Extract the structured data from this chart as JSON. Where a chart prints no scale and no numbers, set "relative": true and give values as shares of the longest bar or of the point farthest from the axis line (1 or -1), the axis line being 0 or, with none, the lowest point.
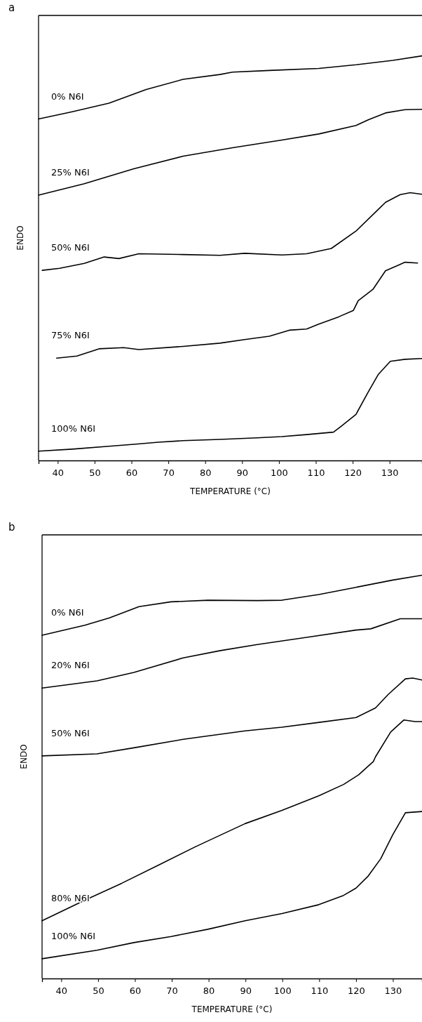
{
  "chart_data": [
    {
      "type": "line",
      "title": "a",
      "xlabel": "TEMPERATURE (°C)",
      "ylabel": "ENDO",
      "relative": true,
      "xlim": [
        34.8,
        138.8
      ],
      "xticks": [
        40,
        50,
        60,
        70,
        80,
        90,
        100,
        110,
        120,
        130
      ],
      "series": [
        {
          "name": "0% N6I",
          "color": "#000000",
          "x": [
            34.8,
            43.9,
            53.9,
            64.0,
            74.0,
            84.0,
            87.4,
            97.4,
            110.8,
            120.9,
            130.9,
            138.8
          ],
          "values": [
            0.844,
            0.862,
            0.883,
            0.917,
            0.942,
            0.954,
            0.96,
            0.964,
            0.969,
            0.978,
            0.989,
            1.0
          ]
        },
        {
          "name": "25% N6I",
          "color": "#000000",
          "x": [
            34.8,
            47.2,
            60.6,
            74.0,
            87.4,
            100.8,
            110.8,
            120.9,
            124.2,
            128.9,
            134.2,
            138.8
          ],
          "values": [
            0.656,
            0.684,
            0.721,
            0.752,
            0.773,
            0.792,
            0.807,
            0.828,
            0.842,
            0.859,
            0.867,
            0.868
          ]
        },
        {
          "name": "50% N6I",
          "color": "#000000",
          "x": [
            35.8,
            40.5,
            47.2,
            52.6,
            56.6,
            62.0,
            74.0,
            84.0,
            90.7,
            100.8,
            107.5,
            114.2,
            120.9,
            126.2,
            128.9,
            132.9,
            135.6,
            138.8
          ],
          "values": [
            0.47,
            0.475,
            0.487,
            0.503,
            0.499,
            0.511,
            0.509,
            0.507,
            0.512,
            0.508,
            0.511,
            0.524,
            0.567,
            0.614,
            0.638,
            0.657,
            0.662,
            0.658
          ]
        },
        {
          "name": "75% N6I",
          "color": "#000000",
          "x": [
            39.7,
            45.2,
            51.2,
            57.9,
            62.0,
            74.0,
            84.0,
            90.7,
            97.4,
            102.8,
            107.5,
            110.8,
            116.2,
            120.2,
            121.5,
            125.5,
            128.9,
            132.2,
            134.2,
            137.6
          ],
          "values": [
            0.253,
            0.258,
            0.276,
            0.279,
            0.274,
            0.282,
            0.29,
            0.299,
            0.307,
            0.322,
            0.325,
            0.337,
            0.355,
            0.371,
            0.395,
            0.423,
            0.469,
            0.482,
            0.49,
            0.488
          ]
        },
        {
          "name": "100% N6I",
          "color": "#000000",
          "x": [
            34.8,
            43.9,
            53.9,
            60.6,
            67.3,
            74.0,
            84.0,
            94.1,
            100.8,
            107.5,
            114.8,
            116.8,
            120.9,
            124.2,
            126.9,
            130.2,
            134.2,
            138.8
          ],
          "values": [
            0.023,
            0.028,
            0.035,
            0.04,
            0.045,
            0.049,
            0.052,
            0.056,
            0.059,
            0.064,
            0.07,
            0.084,
            0.114,
            0.169,
            0.212,
            0.245,
            0.25,
            0.252
          ]
        }
      ]
    },
    {
      "type": "line",
      "title": "b",
      "xlabel": "TEMPERATURE (°C)",
      "ylabel": "ENDO",
      "relative": true,
      "xlim": [
        34.8,
        137.9
      ],
      "xticks": [
        40,
        50,
        60,
        70,
        80,
        90,
        100,
        110,
        120,
        130
      ],
      "series": [
        {
          "name": "0% N6I",
          "color": "#000000",
          "x": [
            34.8,
            46.4,
            53.1,
            61.1,
            69.8,
            79.8,
            93.2,
            99.9,
            109.9,
            120.0,
            130.0,
            137.9
          ],
          "values": [
            0.851,
            0.876,
            0.894,
            0.922,
            0.934,
            0.938,
            0.937,
            0.938,
            0.952,
            0.97,
            0.988,
            1.0
          ]
        },
        {
          "name": "20% N6I",
          "color": "#000000",
          "x": [
            34.8,
            49.7,
            59.7,
            73.1,
            83.2,
            93.2,
            106.6,
            120.0,
            124.0,
            132.0,
            137.9
          ],
          "values": [
            0.72,
            0.738,
            0.759,
            0.795,
            0.813,
            0.828,
            0.846,
            0.864,
            0.867,
            0.892,
            0.892
          ]
        },
        {
          "name": "50% N6I",
          "color": "#000000",
          "x": [
            34.8,
            49.7,
            59.7,
            73.1,
            89.9,
            99.9,
            110.0,
            120.0,
            125.3,
            128.7,
            133.4,
            135.4,
            137.9
          ],
          "values": [
            0.552,
            0.557,
            0.572,
            0.593,
            0.614,
            0.623,
            0.635,
            0.647,
            0.671,
            0.704,
            0.743,
            0.745,
            0.74
          ]
        },
        {
          "name": "80% N6I",
          "color": "#000000",
          "x": [
            34.8,
            46.4,
            56.4,
            66.4,
            76.5,
            89.9,
            99.9,
            109.9,
            116.6,
            120.7,
            124.7,
            125.3,
            129.4,
            133.0,
            136.0,
            137.9
          ],
          "values": [
            0.143,
            0.194,
            0.236,
            0.281,
            0.327,
            0.384,
            0.417,
            0.453,
            0.481,
            0.505,
            0.538,
            0.55,
            0.611,
            0.641,
            0.637,
            0.637
          ]
        },
        {
          "name": "100% N6I",
          "color": "#000000",
          "x": [
            34.8,
            49.7,
            59.7,
            69.8,
            79.8,
            89.9,
            99.9,
            109.9,
            116.6,
            120.0,
            123.3,
            126.7,
            130.0,
            133.4,
            137.9
          ],
          "values": [
            0.049,
            0.07,
            0.089,
            0.104,
            0.122,
            0.143,
            0.161,
            0.183,
            0.206,
            0.224,
            0.254,
            0.297,
            0.357,
            0.411,
            0.414
          ]
        }
      ]
    }
  ]
}
